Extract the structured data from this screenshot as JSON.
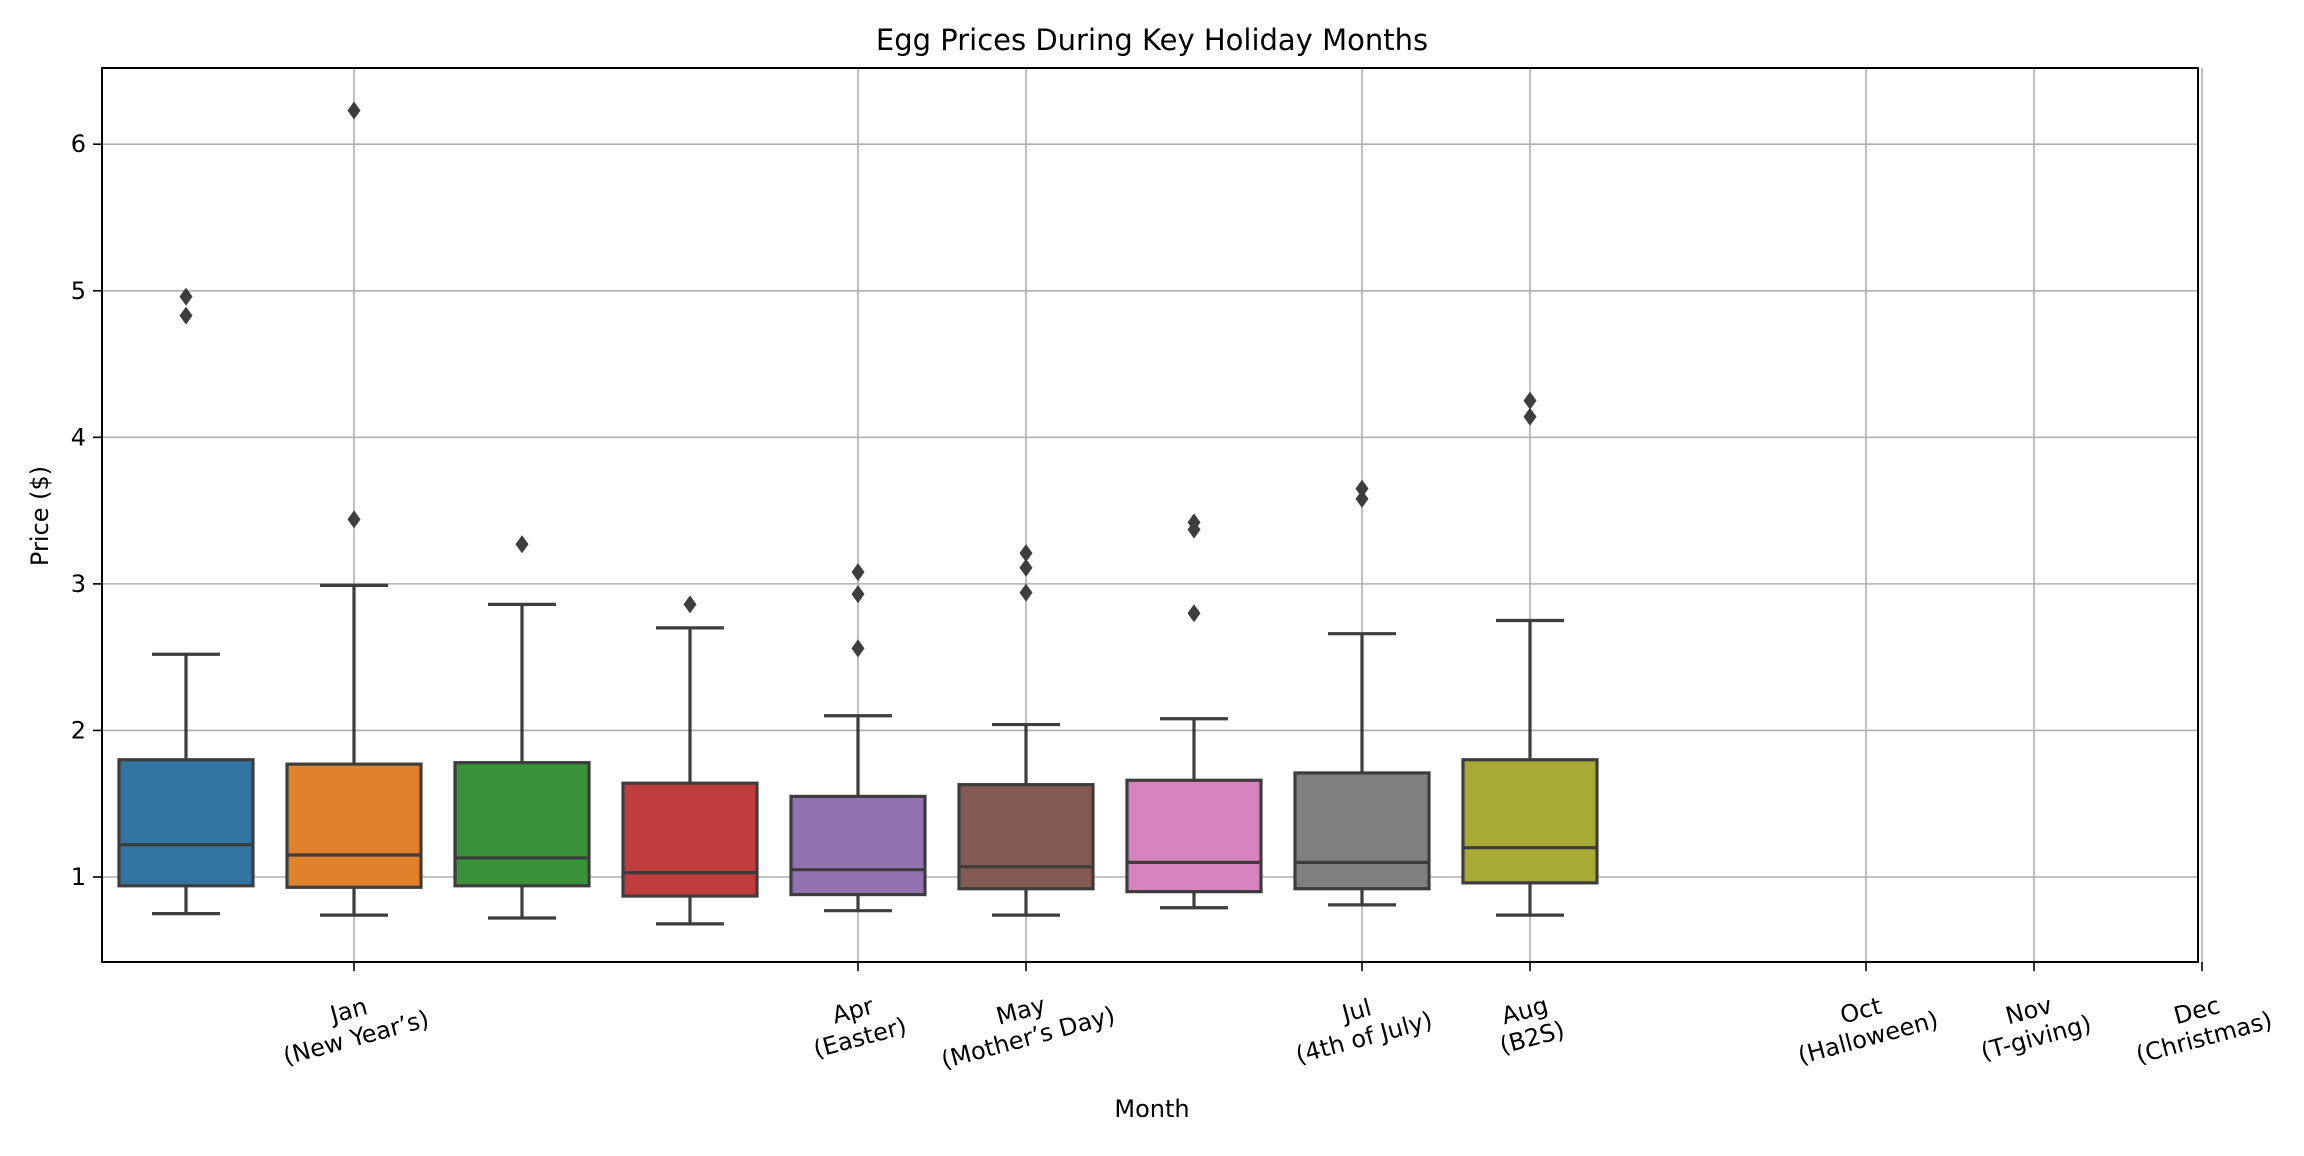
{
  "chart_data": {
    "type": "box",
    "title": "Egg Prices During Key Holiday Months",
    "xlabel": "Month",
    "ylabel": "Price ($)",
    "ylim": [
      0.42,
      6.52
    ],
    "yticks": [
      1,
      2,
      3,
      4,
      5,
      6
    ],
    "grid": true,
    "x_tick_labels": [
      {
        "slot": 2,
        "lines": [
          "Jan",
          "(New Year’s)"
        ]
      },
      {
        "slot": 5,
        "lines": [
          "Apr",
          "(Easter)"
        ]
      },
      {
        "slot": 6,
        "lines": [
          "May",
          "(Mother’s Day)"
        ]
      },
      {
        "slot": 8,
        "lines": [
          "Jul",
          "(4th of July)"
        ]
      },
      {
        "slot": 9,
        "lines": [
          "Aug",
          "(B2S)"
        ]
      },
      {
        "slot": 11,
        "lines": [
          "Oct",
          "(Halloween)"
        ]
      },
      {
        "slot": 12,
        "lines": [
          "Nov",
          "(T-giving)"
        ]
      },
      {
        "slot": 13,
        "lines": [
          "Dec",
          "(Christmas)"
        ]
      }
    ],
    "boxes": [
      {
        "slot": 1,
        "color": "#3274a1",
        "whisker_low": 0.75,
        "q1": 0.94,
        "median": 1.22,
        "q3": 1.8,
        "whisker_high": 2.52,
        "outliers": [
          4.83,
          4.96
        ]
      },
      {
        "slot": 2,
        "color": "#e1812c",
        "whisker_low": 0.74,
        "q1": 0.93,
        "median": 1.15,
        "q3": 1.77,
        "whisker_high": 2.99,
        "outliers": [
          3.44,
          6.23
        ]
      },
      {
        "slot": 3,
        "color": "#3a923a",
        "whisker_low": 0.72,
        "q1": 0.94,
        "median": 1.13,
        "q3": 1.78,
        "whisker_high": 2.86,
        "outliers": [
          3.27
        ]
      },
      {
        "slot": 4,
        "color": "#c03d3e",
        "whisker_low": 0.68,
        "q1": 0.87,
        "median": 1.03,
        "q3": 1.64,
        "whisker_high": 2.7,
        "outliers": [
          2.86
        ]
      },
      {
        "slot": 5,
        "color": "#9372b2",
        "whisker_low": 0.77,
        "q1": 0.88,
        "median": 1.05,
        "q3": 1.55,
        "whisker_high": 2.1,
        "outliers": [
          2.56,
          2.93,
          3.08
        ]
      },
      {
        "slot": 6,
        "color": "#845b53",
        "whisker_low": 0.74,
        "q1": 0.92,
        "median": 1.07,
        "q3": 1.63,
        "whisker_high": 2.04,
        "outliers": [
          2.94,
          3.11,
          3.21
        ]
      },
      {
        "slot": 7,
        "color": "#d684bd",
        "whisker_low": 0.79,
        "q1": 0.9,
        "median": 1.1,
        "q3": 1.66,
        "whisker_high": 2.08,
        "outliers": [
          2.8,
          3.37,
          3.42
        ]
      },
      {
        "slot": 8,
        "color": "#7f7f7f",
        "whisker_low": 0.81,
        "q1": 0.92,
        "median": 1.1,
        "q3": 1.71,
        "whisker_high": 2.66,
        "outliers": [
          3.58,
          3.65
        ]
      },
      {
        "slot": 9,
        "color": "#a9aa35",
        "whisker_low": 0.74,
        "q1": 0.96,
        "median": 1.2,
        "q3": 1.8,
        "whisker_high": 2.75,
        "outliers": [
          4.14,
          4.25
        ]
      }
    ],
    "slot_range": [
      0.5,
      13
    ]
  }
}
